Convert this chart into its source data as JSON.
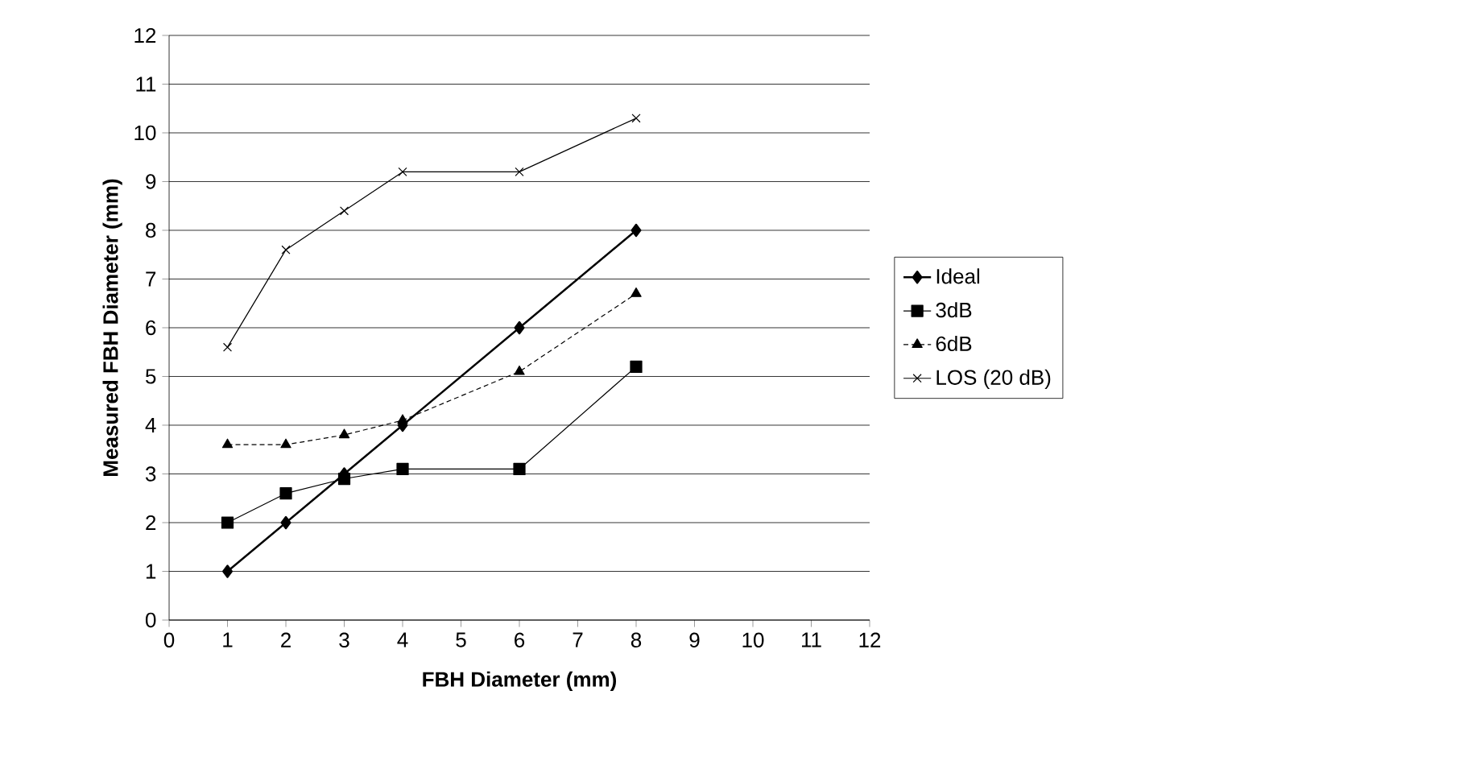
{
  "chart_data": {
    "type": "line",
    "xlabel": "FBH Diameter (mm)",
    "ylabel": "Measured FBH Diameter (mm)",
    "xlim": [
      0,
      12
    ],
    "xticks": [
      0,
      1,
      2,
      3,
      4,
      5,
      6,
      7,
      8,
      9,
      10,
      11,
      12
    ],
    "ylim": [
      0,
      12
    ],
    "yticks": [
      0,
      1,
      2,
      3,
      4,
      5,
      6,
      7,
      8,
      9,
      10,
      11,
      12
    ],
    "grid": "y",
    "legend": "right",
    "series": [
      {
        "name": "Ideal",
        "color": "#000000",
        "x": [
          1,
          2,
          3,
          4,
          6,
          8
        ],
        "values": [
          1,
          2,
          3,
          4,
          6,
          8
        ],
        "marker": "diamond",
        "line_style": "solid"
      },
      {
        "name": "3dB",
        "color": "#000000",
        "x": [
          1,
          2,
          3,
          4,
          6,
          8
        ],
        "values": [
          2,
          2.6,
          2.9,
          3.1,
          3.1,
          5.2
        ],
        "marker": "square",
        "line_style": "solid"
      },
      {
        "name": "6dB",
        "color": "#000000",
        "x": [
          1,
          2,
          3,
          4,
          6,
          8
        ],
        "values": [
          3.6,
          3.6,
          3.8,
          4.1,
          5.1,
          6.7
        ],
        "marker": "triangle",
        "line_style": "dotted"
      },
      {
        "name": "LOS (20 dB)",
        "color": "#000000",
        "x": [
          1,
          2,
          3,
          4,
          6,
          8
        ],
        "values": [
          5.6,
          7.6,
          8.4,
          9.2,
          9.2,
          10.3
        ],
        "marker": "cross",
        "line_style": "solid"
      }
    ]
  }
}
